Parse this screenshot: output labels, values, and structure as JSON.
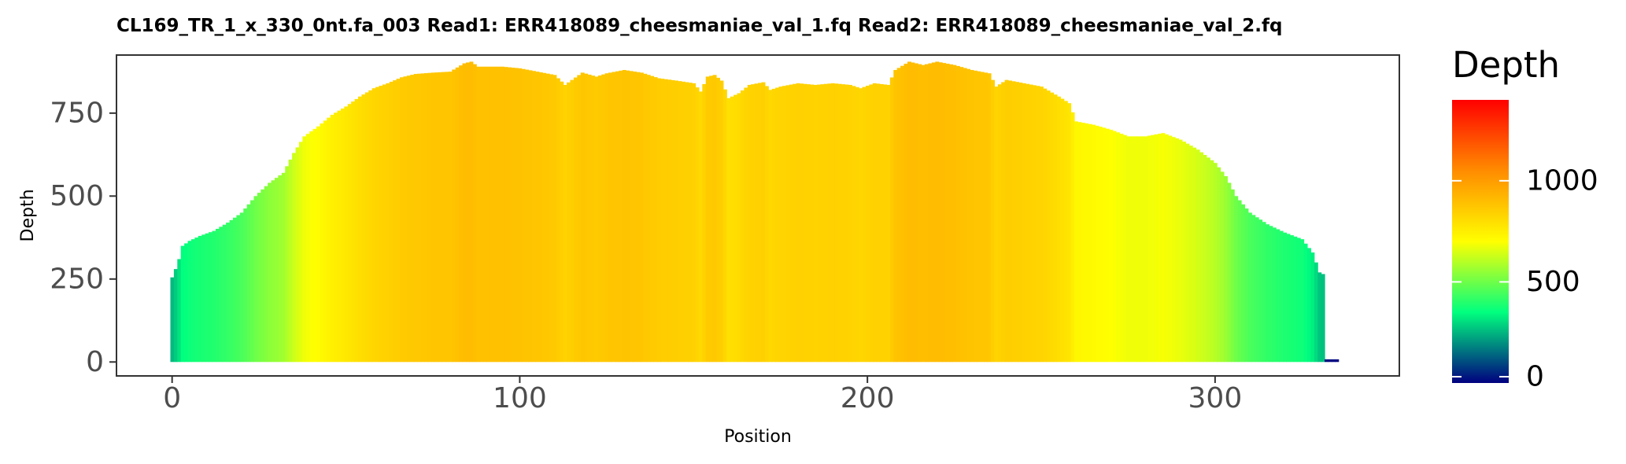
{
  "chart_data": {
    "type": "bar",
    "title": "CL169_TR_1_x_330_0nt.fa_003   Read1: ERR418089_cheesmaniae_val_1.fq   Read2: ERR418089_cheesmaniae_val_2.fq",
    "xlabel": "Position",
    "ylabel": "Depth",
    "xlim": [
      -16,
      353
    ],
    "ylim": [
      -42,
      925
    ],
    "x_ticks": [
      0,
      100,
      200,
      300
    ],
    "y_ticks": [
      0,
      250,
      500,
      750
    ],
    "grid": false,
    "legend": {
      "title": "Depth",
      "position": "right",
      "type": "colorbar",
      "min": 0,
      "max": 1400,
      "ticks": [
        0,
        500,
        1000
      ],
      "colors": [
        "#000080",
        "#00ff7f",
        "#ffff00",
        "#ff8c00",
        "#ff0000"
      ],
      "color_stops": [
        0,
        0.25,
        0.5,
        0.75,
        1.0
      ]
    },
    "x_positions": "0-335",
    "depth_profile_points": [
      [
        0,
        255
      ],
      [
        1,
        280
      ],
      [
        2,
        310
      ],
      [
        3,
        350
      ],
      [
        5,
        365
      ],
      [
        8,
        380
      ],
      [
        12,
        395
      ],
      [
        16,
        420
      ],
      [
        20,
        450
      ],
      [
        24,
        500
      ],
      [
        28,
        540
      ],
      [
        32,
        570
      ],
      [
        35,
        630
      ],
      [
        38,
        680
      ],
      [
        42,
        710
      ],
      [
        46,
        745
      ],
      [
        50,
        770
      ],
      [
        54,
        800
      ],
      [
        58,
        825
      ],
      [
        62,
        840
      ],
      [
        66,
        858
      ],
      [
        70,
        868
      ],
      [
        75,
        872
      ],
      [
        80,
        875
      ],
      [
        84,
        900
      ],
      [
        86,
        905
      ],
      [
        88,
        890
      ],
      [
        95,
        890
      ],
      [
        100,
        885
      ],
      [
        105,
        875
      ],
      [
        110,
        865
      ],
      [
        113,
        835
      ],
      [
        115,
        850
      ],
      [
        118,
        872
      ],
      [
        122,
        860
      ],
      [
        125,
        870
      ],
      [
        130,
        880
      ],
      [
        135,
        872
      ],
      [
        140,
        855
      ],
      [
        145,
        848
      ],
      [
        150,
        840
      ],
      [
        152,
        815
      ],
      [
        154,
        860
      ],
      [
        156,
        865
      ],
      [
        158,
        848
      ],
      [
        160,
        795
      ],
      [
        163,
        810
      ],
      [
        166,
        835
      ],
      [
        170,
        843
      ],
      [
        172,
        820
      ],
      [
        175,
        830
      ],
      [
        180,
        840
      ],
      [
        185,
        835
      ],
      [
        190,
        840
      ],
      [
        195,
        835
      ],
      [
        198,
        825
      ],
      [
        202,
        840
      ],
      [
        206,
        835
      ],
      [
        208,
        880
      ],
      [
        212,
        905
      ],
      [
        216,
        895
      ],
      [
        220,
        905
      ],
      [
        225,
        895
      ],
      [
        230,
        880
      ],
      [
        235,
        870
      ],
      [
        237,
        830
      ],
      [
        240,
        850
      ],
      [
        245,
        840
      ],
      [
        250,
        830
      ],
      [
        255,
        800
      ],
      [
        258,
        780
      ],
      [
        260,
        725
      ],
      [
        265,
        715
      ],
      [
        270,
        700
      ],
      [
        275,
        680
      ],
      [
        280,
        680
      ],
      [
        285,
        690
      ],
      [
        290,
        670
      ],
      [
        295,
        640
      ],
      [
        300,
        600
      ],
      [
        303,
        560
      ],
      [
        306,
        500
      ],
      [
        310,
        450
      ],
      [
        315,
        415
      ],
      [
        320,
        390
      ],
      [
        325,
        370
      ],
      [
        328,
        330
      ],
      [
        330,
        270
      ],
      [
        331,
        265
      ]
    ],
    "tail_points": [
      [
        332,
        8
      ],
      [
        333,
        8
      ],
      [
        334,
        8
      ],
      [
        335,
        8
      ]
    ]
  }
}
